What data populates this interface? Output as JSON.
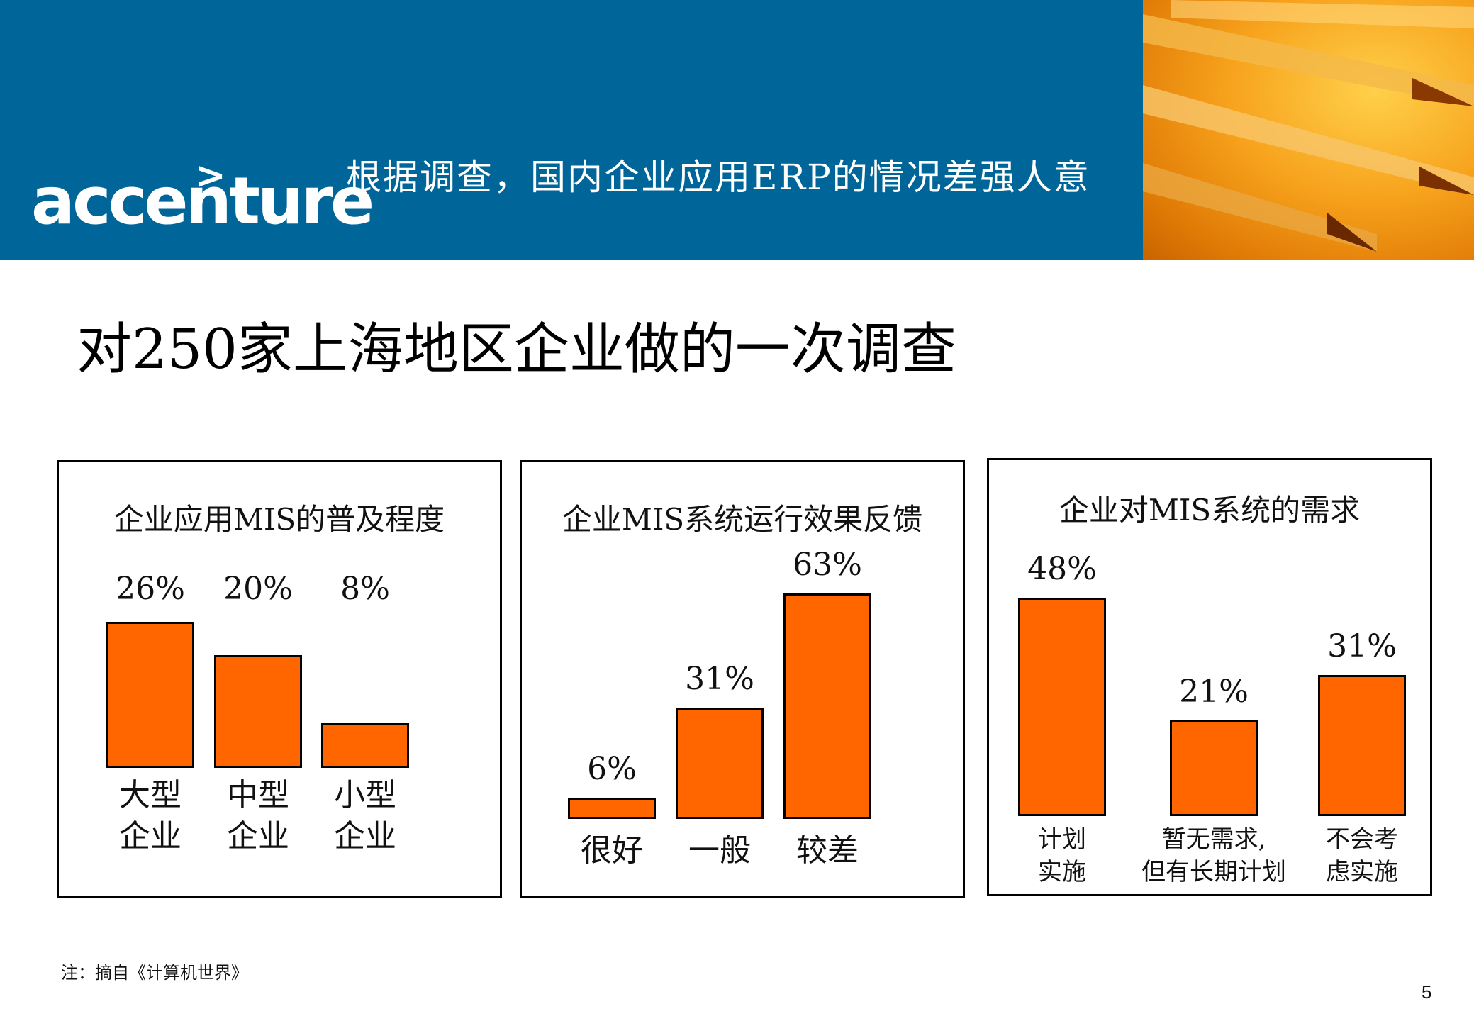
{
  "header": {
    "logo": "accenture",
    "title": "根据调查，国内企业应用ERP的情况差强人意"
  },
  "main_title": "对250家上海地区企业做的一次调查",
  "note": "注：摘自《计算机世界》",
  "page_number": "5",
  "colors": {
    "banner": "#006699",
    "bar": "#ff6600"
  },
  "chart_data": [
    {
      "type": "bar",
      "title": "企业应用MIS的普及程度",
      "categories": [
        "大型\n企业",
        "中型\n企业",
        "小型\n企业"
      ],
      "values": [
        26,
        20,
        8
      ],
      "labels": [
        "26%",
        "20%",
        "8%"
      ],
      "ylim": [
        0,
        70
      ]
    },
    {
      "type": "bar",
      "title": "企业MIS系统运行效果反馈",
      "categories": [
        "很好",
        "一般",
        "较差"
      ],
      "values": [
        6,
        31,
        63
      ],
      "labels": [
        "6%",
        "31%",
        "63%"
      ],
      "ylim": [
        0,
        70
      ]
    },
    {
      "type": "bar",
      "title": "企业对MIS系统的需求",
      "categories": [
        "计划\n实施",
        "暂无需求,\n但有长期计划",
        "不会考\n虑实施"
      ],
      "values": [
        48,
        21,
        31
      ],
      "labels": [
        "48%",
        "21%",
        "31%"
      ],
      "ylim": [
        0,
        70
      ]
    }
  ]
}
